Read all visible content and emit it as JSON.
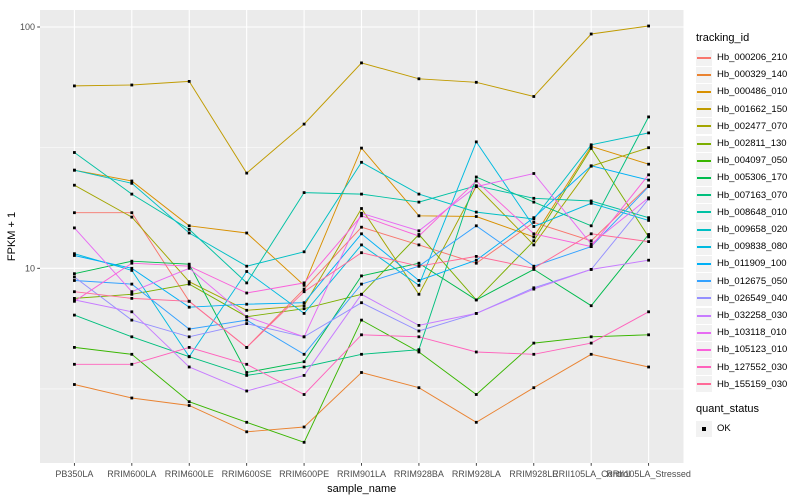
{
  "chart_data": {
    "type": "line",
    "title": "",
    "xlabel": "sample_name",
    "ylabel": "FPKM + 1",
    "y_scale": "log10",
    "ylim": [
      1.55,
      117
    ],
    "y_major_ticks": [
      100,
      10
    ],
    "y_minor_gridlines": [
      31.62,
      3.162
    ],
    "grid": "on",
    "legend_position": "right",
    "legend_titles": {
      "series": "tracking_id",
      "quant": "quant_status"
    },
    "quant_status_items": [
      {
        "label": "OK",
        "shape": "filled-square"
      }
    ],
    "point_shape": "filled-square",
    "point_color": "#000000",
    "panel_bg": "#ebebeb",
    "grid_color": "#ffffff",
    "categories": [
      "PB350LA",
      "RRIM600LA",
      "RRIM600LE",
      "RRIM600SE",
      "RRIM600PE",
      "RRIM901LA",
      "RRIM928BA",
      "RRIM928LA",
      "RRIM928LE",
      "RRII105LA_Control",
      "RRII105LA_Stressed"
    ],
    "series": [
      {
        "name": "Hb_000206_210",
        "color": "#F8766D",
        "values": [
          17.0,
          17.0,
          7.3,
          4.7,
          8.2,
          14.8,
          12.5,
          10.5,
          15.5,
          13.0,
          22.0
        ]
      },
      {
        "name": "Hb_000329_140",
        "color": "#EA8331",
        "values": [
          3.3,
          2.9,
          2.7,
          2.1,
          2.2,
          3.7,
          3.2,
          2.3,
          3.2,
          4.4,
          3.9
        ]
      },
      {
        "name": "Hb_000486_010",
        "color": "#D89000",
        "values": [
          25.5,
          23.0,
          15.0,
          14.0,
          8.5,
          31.5,
          16.5,
          16.4,
          13.5,
          32.0,
          27.0
        ]
      },
      {
        "name": "Hb_001662_150",
        "color": "#C09B00",
        "values": [
          57.0,
          57.5,
          59.5,
          24.8,
          39.6,
          71.0,
          61.0,
          59.0,
          51.5,
          93.5,
          101.0
        ]
      },
      {
        "name": "Hb_002477_070",
        "color": "#A3A500",
        "values": [
          22.1,
          16.3,
          8.8,
          6.7,
          7.0,
          17.7,
          7.8,
          21.9,
          12.5,
          26.5,
          31.6
        ]
      },
      {
        "name": "Hb_002811_130",
        "color": "#7CAE00",
        "values": [
          7.5,
          7.8,
          8.6,
          6.3,
          6.8,
          7.8,
          13.8,
          7.4,
          13.0,
          31.4,
          13.5
        ]
      },
      {
        "name": "Hb_004097_050",
        "color": "#39B600",
        "values": [
          4.7,
          4.4,
          2.8,
          2.3,
          1.9,
          6.1,
          4.5,
          3.0,
          4.9,
          5.2,
          5.3
        ]
      },
      {
        "name": "Hb_005306_170",
        "color": "#00BB4E",
        "values": [
          9.5,
          10.7,
          10.4,
          3.7,
          4.1,
          9.3,
          10.5,
          7.4,
          9.9,
          7.0,
          13.8
        ]
      },
      {
        "name": "Hb_007163_070",
        "color": "#00BF7D",
        "values": [
          6.4,
          5.2,
          4.3,
          3.6,
          3.9,
          4.4,
          4.6,
          23.9,
          18.8,
          15.0,
          42.4
        ]
      },
      {
        "name": "Hb_008648_010",
        "color": "#00C1A3",
        "values": [
          30.2,
          20.3,
          14.5,
          8.7,
          20.6,
          20.3,
          18.8,
          22.0,
          19.5,
          19.0,
          16.2
        ]
      },
      {
        "name": "Hb_009658_020",
        "color": "#00BFC4",
        "values": [
          25.5,
          22.5,
          14.0,
          10.2,
          11.7,
          27.5,
          20.3,
          17.1,
          16.0,
          32.5,
          36.4
        ]
      },
      {
        "name": "Hb_009838_080",
        "color": "#00BAE0",
        "values": [
          11.5,
          9.8,
          4.3,
          9.7,
          6.5,
          12.5,
          8.5,
          33.4,
          14.9,
          18.6,
          15.8
        ]
      },
      {
        "name": "Hb_011909_100",
        "color": "#00B0F6",
        "values": [
          11.3,
          10.0,
          6.9,
          7.1,
          7.2,
          13.9,
          8.9,
          10.8,
          16.2,
          26.6,
          23.2
        ]
      },
      {
        "name": "Hb_012675_050",
        "color": "#35A2FF",
        "values": [
          8.9,
          8.6,
          5.6,
          6.1,
          4.4,
          8.6,
          10.2,
          15.0,
          10.2,
          12.3,
          21.8
        ]
      },
      {
        "name": "Hb_026549_040",
        "color": "#9590FF",
        "values": [
          9.2,
          6.1,
          5.2,
          5.9,
          5.2,
          7.2,
          5.5,
          6.5,
          8.3,
          9.9,
          19.4
        ]
      },
      {
        "name": "Hb_032258_030",
        "color": "#C77CFF",
        "values": [
          7.4,
          6.6,
          3.9,
          3.1,
          3.6,
          7.8,
          5.8,
          6.5,
          8.2,
          9.9,
          10.8
        ]
      },
      {
        "name": "Hb_103118_010",
        "color": "#E76BF3",
        "values": [
          14.7,
          8.0,
          10.0,
          6.3,
          5.2,
          16.9,
          14.3,
          21.8,
          24.7,
          12.6,
          19.6
        ]
      },
      {
        "name": "Hb_105123_010",
        "color": "#FA62DB",
        "values": [
          7.3,
          10.5,
          10.2,
          7.9,
          8.7,
          16.5,
          13.6,
          23.0,
          13.9,
          12.3,
          24.4
        ]
      },
      {
        "name": "Hb_127552_030",
        "color": "#FF62BC",
        "values": [
          4.0,
          4.0,
          4.7,
          4.0,
          3.0,
          5.3,
          5.2,
          4.5,
          4.4,
          4.9,
          6.6
        ]
      },
      {
        "name": "Hb_155159_030",
        "color": "#FF6A98",
        "values": [
          8.0,
          7.5,
          7.3,
          4.7,
          8.0,
          11.6,
          10.2,
          11.2,
          10.0,
          13.9,
          12.9
        ]
      }
    ]
  }
}
